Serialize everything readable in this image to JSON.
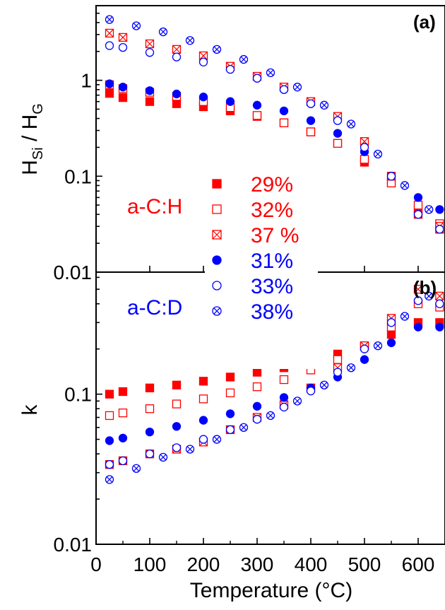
{
  "chart_data": [
    {
      "panel": "(a)",
      "type": "scatter",
      "ylabel_main": "H",
      "ylabel_sub1": "Si",
      "ylabel_mid": " / H",
      "ylabel_sub2": "G",
      "yscale": "log",
      "ylim": [
        0.01,
        6
      ],
      "yticks": [
        {
          "value": 0.01,
          "label": "0.01"
        },
        {
          "value": 0.1,
          "label": "0.1"
        },
        {
          "value": 1,
          "label": "1"
        }
      ],
      "xlim": [
        0,
        650
      ],
      "series": [
        {
          "name": "29%",
          "group": "a-C:H",
          "marker": "filled-square",
          "color": "#ff0000",
          "x": [
            25,
            50,
            100,
            150,
            200,
            250,
            300,
            350,
            400,
            450,
            500,
            550,
            600,
            640
          ],
          "y": [
            0.73,
            0.66,
            0.6,
            0.57,
            0.53,
            0.48,
            0.42,
            0.36,
            0.29,
            0.22,
            0.14,
            0.085,
            0.045,
            0.028
          ]
        },
        {
          "name": "32%",
          "group": "a-C:H",
          "marker": "open-square",
          "color": "#ff0000",
          "x": [
            25,
            50,
            100,
            150,
            200,
            250,
            300,
            350,
            400,
            450,
            500,
            550,
            600,
            640
          ],
          "y": [
            0.9,
            0.82,
            0.75,
            0.68,
            0.6,
            0.52,
            0.43,
            0.36,
            0.29,
            0.22,
            0.15,
            0.085,
            0.05,
            0.032
          ]
        },
        {
          "name": "37 %",
          "group": "a-C:H",
          "marker": "crossed-square",
          "color": "#ff0000",
          "x": [
            25,
            50,
            100,
            150,
            200,
            250,
            300,
            350,
            400,
            450,
            500,
            550,
            600,
            640
          ],
          "y": [
            3.1,
            2.8,
            2.4,
            2.1,
            1.8,
            1.4,
            1.1,
            0.85,
            0.6,
            0.42,
            0.23,
            0.1,
            0.04,
            0.03
          ]
        },
        {
          "name": "31%",
          "group": "a-C:D",
          "marker": "filled-circle",
          "color": "#0000ff",
          "x": [
            25,
            50,
            100,
            150,
            200,
            250,
            300,
            350,
            400,
            450,
            500,
            550,
            600,
            640
          ],
          "y": [
            0.92,
            0.85,
            0.78,
            0.72,
            0.67,
            0.6,
            0.55,
            0.48,
            0.38,
            0.28,
            0.18,
            0.1,
            0.06,
            0.045
          ]
        },
        {
          "name": "33%",
          "group": "a-C:D",
          "marker": "open-circle",
          "color": "#0000ff",
          "x": [
            25,
            50,
            100,
            150,
            200,
            250,
            300,
            350,
            400,
            450,
            500,
            550,
            600,
            640
          ],
          "y": [
            2.3,
            2.2,
            1.95,
            1.75,
            1.55,
            1.3,
            1.05,
            0.8,
            0.57,
            0.38,
            0.2,
            0.1,
            0.04,
            0.028
          ]
        },
        {
          "name": "38%",
          "group": "a-C:D",
          "marker": "crossed-circle",
          "color": "#0000ff",
          "x": [
            25,
            75,
            125,
            175,
            225,
            275,
            325,
            375,
            425,
            475,
            525,
            575,
            620
          ],
          "y": [
            4.3,
            3.7,
            3.2,
            2.6,
            2.1,
            1.65,
            1.2,
            0.85,
            0.55,
            0.35,
            0.17,
            0.08,
            0.045
          ]
        }
      ]
    },
    {
      "panel": "(b)",
      "type": "scatter",
      "ylabel": "k",
      "yscale": "log",
      "ylim": [
        0.01,
        0.65
      ],
      "yticks": [
        {
          "value": 0.01,
          "label": "0.01"
        },
        {
          "value": 0.1,
          "label": "0.1"
        }
      ],
      "xlim": [
        0,
        650
      ],
      "xlabel": "Temperature (°C)",
      "xticks": [
        0,
        100,
        200,
        300,
        400,
        500,
        600
      ],
      "series": [
        {
          "name": "29%",
          "group": "a-C:H",
          "marker": "filled-square",
          "color": "#ff0000",
          "x": [
            25,
            50,
            100,
            150,
            200,
            250,
            300,
            350,
            400,
            450,
            500,
            550,
            600,
            640
          ],
          "y": [
            0.1,
            0.104,
            0.11,
            0.115,
            0.122,
            0.13,
            0.14,
            0.15,
            0.165,
            0.185,
            0.21,
            0.25,
            0.3,
            0.3
          ]
        },
        {
          "name": "32%",
          "group": "a-C:H",
          "marker": "open-square",
          "color": "#ff0000",
          "x": [
            25,
            50,
            100,
            150,
            200,
            250,
            300,
            350,
            400,
            450,
            500,
            550,
            600,
            640
          ],
          "y": [
            0.072,
            0.075,
            0.08,
            0.086,
            0.093,
            0.102,
            0.112,
            0.125,
            0.145,
            0.17,
            0.21,
            0.28,
            0.4,
            0.38
          ]
        },
        {
          "name": "37 %",
          "group": "a-C:H",
          "marker": "crossed-square",
          "color": "#ff0000",
          "x": [
            25,
            50,
            100,
            150,
            200,
            250,
            300,
            350,
            400,
            450,
            500,
            550,
            600,
            640
          ],
          "y": [
            0.034,
            0.036,
            0.04,
            0.043,
            0.048,
            0.058,
            0.07,
            0.085,
            0.11,
            0.15,
            0.21,
            0.32,
            0.5,
            0.45
          ]
        },
        {
          "name": "31%",
          "group": "a-C:D",
          "marker": "filled-circle",
          "color": "#0000ff",
          "x": [
            25,
            50,
            100,
            150,
            200,
            250,
            300,
            350,
            400,
            450,
            500,
            550,
            600,
            640
          ],
          "y": [
            0.049,
            0.051,
            0.056,
            0.061,
            0.067,
            0.074,
            0.083,
            0.095,
            0.11,
            0.13,
            0.17,
            0.22,
            0.28,
            0.28
          ]
        },
        {
          "name": "33%",
          "group": "a-C:D",
          "marker": "open-circle",
          "color": "#0000ff",
          "x": [
            25,
            50,
            100,
            150,
            200,
            250,
            300,
            350,
            400,
            450,
            500,
            550,
            600,
            640
          ],
          "y": [
            0.034,
            0.036,
            0.04,
            0.044,
            0.05,
            0.058,
            0.068,
            0.082,
            0.105,
            0.14,
            0.2,
            0.3,
            0.42,
            0.4
          ]
        },
        {
          "name": "38%",
          "group": "a-C:D",
          "marker": "crossed-circle",
          "color": "#0000ff",
          "x": [
            25,
            75,
            125,
            175,
            225,
            275,
            325,
            375,
            425,
            475,
            525,
            575,
            620
          ],
          "y": [
            0.027,
            0.032,
            0.038,
            0.043,
            0.05,
            0.06,
            0.072,
            0.09,
            0.115,
            0.15,
            0.21,
            0.33,
            0.45
          ]
        }
      ]
    }
  ],
  "legend": {
    "groups": [
      {
        "label": "a-C:H",
        "color": "#ff0000"
      },
      {
        "label": "a-C:D",
        "color": "#0000ff"
      }
    ],
    "entries": [
      {
        "label": "29%",
        "marker": "filled-square",
        "color": "#ff0000"
      },
      {
        "label": "32%",
        "marker": "open-square",
        "color": "#ff0000"
      },
      {
        "label": "37 %",
        "marker": "crossed-square",
        "color": "#ff0000"
      },
      {
        "label": "31%",
        "marker": "filled-circle",
        "color": "#0000ff"
      },
      {
        "label": "33%",
        "marker": "open-circle",
        "color": "#0000ff"
      },
      {
        "label": "38%",
        "marker": "crossed-circle",
        "color": "#0000ff"
      }
    ]
  }
}
